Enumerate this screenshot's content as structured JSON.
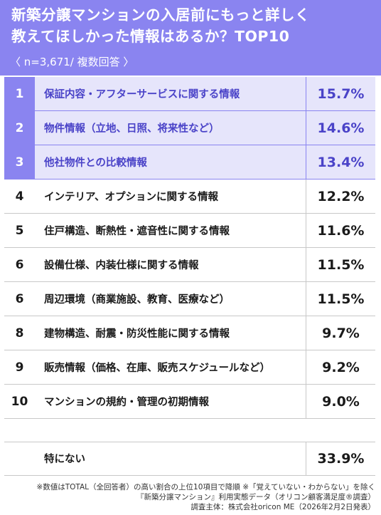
{
  "title_line1": "新築分譲マンションの入居前にもっと詳しく",
  "title_line2": "教えてほしかった情報はあるか？TOP10",
  "sample": "〈 n=3,671/ 複数回答 〉",
  "colors": {
    "accent": "#8a84f0",
    "accent_text": "#4a43c8",
    "highlight_bg": "#e6e5fb"
  },
  "chart_data": {
    "type": "table",
    "title": "新築分譲マンションの入居前にもっと詳しく教えてほしかった情報はあるか？TOP10",
    "rows": [
      {
        "rank": "1",
        "label": "保証内容・アフターサービスに関する情報",
        "value": 15.7,
        "display": "15.7%"
      },
      {
        "rank": "2",
        "label": "物件情報（立地、日照、将来性など）",
        "value": 14.6,
        "display": "14.6%"
      },
      {
        "rank": "3",
        "label": "他社物件との比較情報",
        "value": 13.4,
        "display": "13.4%"
      },
      {
        "rank": "4",
        "label": "インテリア、オプションに関する情報",
        "value": 12.2,
        "display": "12.2%"
      },
      {
        "rank": "5",
        "label": "住戸構造、断熱性・遮音性に関する情報",
        "value": 11.6,
        "display": "11.6%"
      },
      {
        "rank": "6",
        "label": "設備仕様、内装仕様に関する情報",
        "value": 11.5,
        "display": "11.5%"
      },
      {
        "rank": "6",
        "label": "周辺環境（商業施設、教育、医療など）",
        "value": 11.5,
        "display": "11.5%"
      },
      {
        "rank": "8",
        "label": "建物構造、耐震・防災性能に関する情報",
        "value": 9.7,
        "display": "9.7%"
      },
      {
        "rank": "9",
        "label": "販売情報（価格、在庫、販売スケジュールなど）",
        "value": 9.2,
        "display": "9.2%"
      },
      {
        "rank": "10",
        "label": "マンションの規約・管理の初期情報",
        "value": 9.0,
        "display": "9.0%"
      }
    ],
    "extra": {
      "label": "特にない",
      "value": 33.9,
      "display": "33.9%"
    }
  },
  "footnotes": [
    "※数値はTOTAL（全回答者）の高い割合の上位10項目で降順 ※「覚えていない・わからない」を除く",
    "『新築分譲マンション』利用実態データ（オリコン顧客満足度®調査）",
    "調査主体：株式会社oricon ME（2026年2月2日発表）"
  ]
}
